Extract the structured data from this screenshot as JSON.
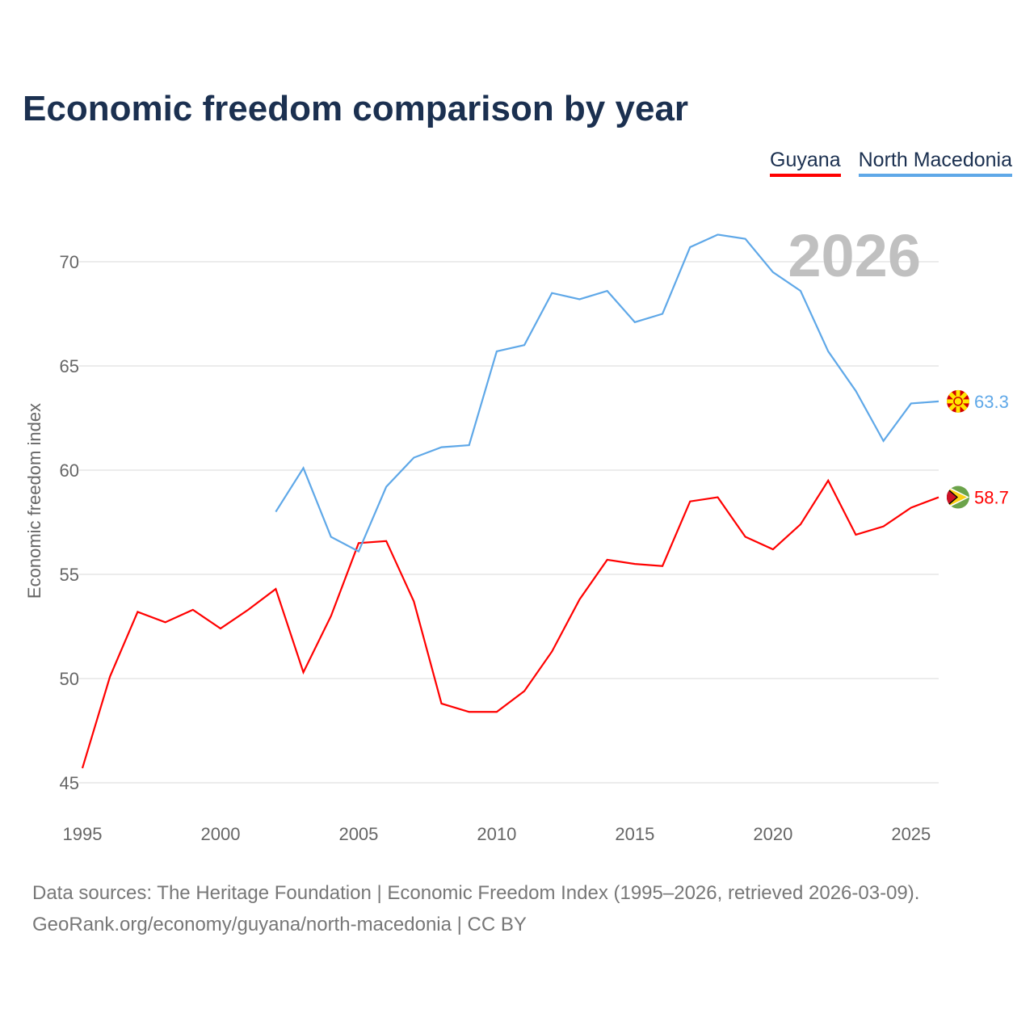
{
  "chart_data": {
    "type": "line",
    "title": "Economic freedom comparison by year",
    "ylabel": "Economic freedom index",
    "xlabel": "",
    "xlim": [
      1995,
      2026
    ],
    "ylim": [
      45,
      72
    ],
    "xticks": [
      1995,
      2000,
      2005,
      2010,
      2015,
      2020,
      2025
    ],
    "yticks": [
      45,
      50,
      55,
      60,
      65,
      70
    ],
    "grid": true,
    "legend_placement": "top-right",
    "year_label": "2026",
    "series": [
      {
        "name": "Guyana",
        "color": "#ff0000",
        "end_label": "58.7",
        "flag": "guyana-flag",
        "x": [
          1995,
          1996,
          1997,
          1998,
          1999,
          2000,
          2001,
          2002,
          2003,
          2004,
          2005,
          2006,
          2007,
          2008,
          2009,
          2010,
          2011,
          2012,
          2013,
          2014,
          2015,
          2016,
          2017,
          2018,
          2019,
          2020,
          2021,
          2022,
          2023,
          2024,
          2025,
          2026
        ],
        "values": [
          45.7,
          50.1,
          53.2,
          52.7,
          53.3,
          52.4,
          53.3,
          54.3,
          50.3,
          53.0,
          56.5,
          56.6,
          53.7,
          48.8,
          48.4,
          48.4,
          49.4,
          51.3,
          53.8,
          55.7,
          55.5,
          55.4,
          58.5,
          58.7,
          56.8,
          56.2,
          57.4,
          59.5,
          56.9,
          57.3,
          58.2,
          58.7
        ]
      },
      {
        "name": "North Macedonia",
        "color": "#5fa8e8",
        "end_label": "63.3",
        "flag": "north-macedonia-flag",
        "x": [
          2002,
          2003,
          2004,
          2005,
          2006,
          2007,
          2008,
          2009,
          2010,
          2011,
          2012,
          2013,
          2014,
          2015,
          2016,
          2017,
          2018,
          2019,
          2020,
          2021,
          2022,
          2023,
          2024,
          2025,
          2026
        ],
        "values": [
          58.0,
          60.1,
          56.8,
          56.1,
          59.2,
          60.6,
          61.1,
          61.2,
          65.7,
          66.0,
          68.5,
          68.2,
          68.6,
          67.1,
          67.5,
          70.7,
          71.3,
          71.1,
          69.5,
          68.6,
          65.7,
          63.8,
          61.4,
          63.2,
          63.3
        ]
      }
    ]
  },
  "footer": {
    "line1": "Data sources: The Heritage Foundation | Economic Freedom Index (1995–2026, retrieved 2026-03-09).",
    "line2": "GeoRank.org/economy/guyana/north-macedonia | CC BY"
  }
}
